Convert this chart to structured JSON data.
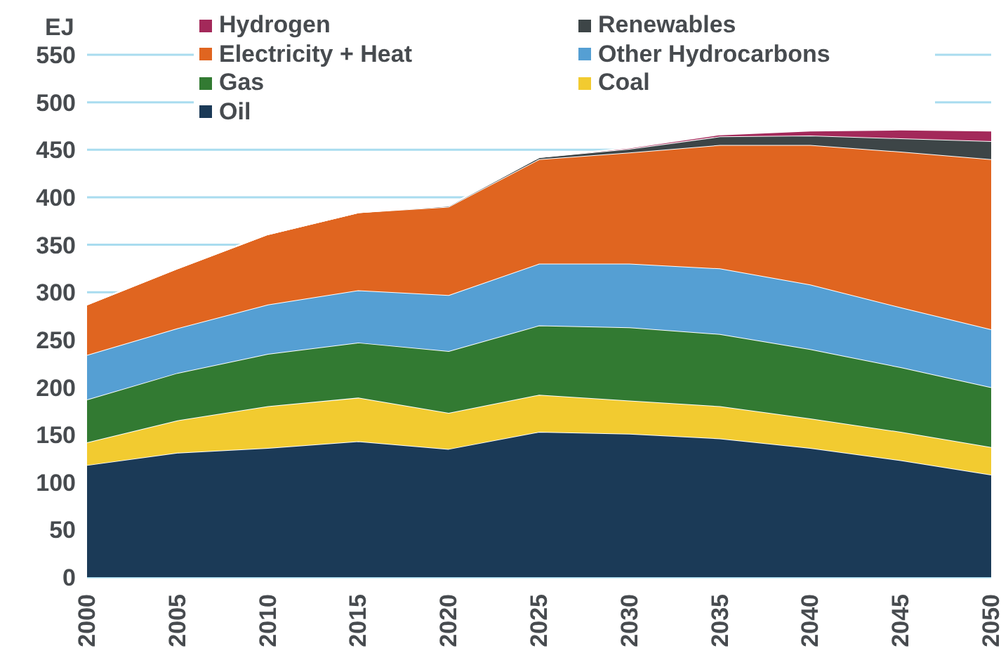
{
  "chart_data": {
    "type": "area",
    "ylabel": "EJ",
    "stacked": true,
    "grid": "y",
    "legend": "top",
    "x": [
      2000,
      2005,
      2010,
      2015,
      2020,
      2025,
      2030,
      2035,
      2040,
      2045,
      2050
    ],
    "xlim": [
      2000,
      2050
    ],
    "xticks": [
      2000,
      2005,
      2010,
      2015,
      2020,
      2025,
      2030,
      2035,
      2040,
      2045,
      2050
    ],
    "ylim": [
      0,
      550
    ],
    "yticks": [
      0,
      50,
      100,
      150,
      200,
      250,
      300,
      350,
      400,
      450,
      500,
      550
    ],
    "series": [
      {
        "name": "Oil",
        "color": "#1b3a57",
        "values": [
          118,
          131,
          136,
          143,
          135,
          153,
          151,
          146,
          136,
          123,
          108
        ]
      },
      {
        "name": "Coal",
        "color": "#f2cb30",
        "values": [
          24,
          34,
          44,
          46,
          38,
          39,
          35,
          34,
          31,
          30,
          29
        ]
      },
      {
        "name": "Gas",
        "color": "#327a32",
        "values": [
          45,
          50,
          55,
          58,
          65,
          73,
          77,
          76,
          73,
          68,
          63
        ]
      },
      {
        "name": "Other Hydrocarbons",
        "color": "#559fd3",
        "values": [
          47,
          47,
          52,
          55,
          59,
          65,
          67,
          69,
          68,
          63,
          61
        ]
      },
      {
        "name": "Electricity + Heat",
        "color": "#e06520",
        "values": [
          53,
          63,
          74,
          82,
          93,
          110,
          117,
          130,
          147,
          164,
          179
        ]
      },
      {
        "name": "Renewables",
        "color": "#3d4547",
        "values": [
          0,
          0,
          0,
          0,
          1,
          2,
          4,
          9,
          10,
          14,
          19
        ]
      },
      {
        "name": "Hydrogen",
        "color": "#a3295a",
        "values": [
          0,
          0,
          0,
          0,
          0,
          0,
          1,
          2,
          5,
          9,
          11
        ]
      }
    ]
  }
}
